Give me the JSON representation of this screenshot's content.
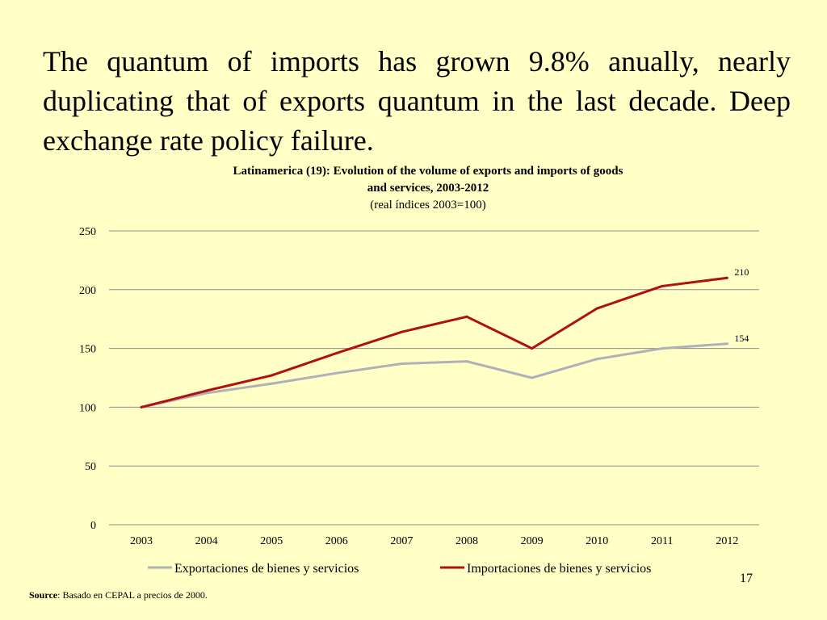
{
  "headline": "The quantum of imports has grown 9.8% anually, nearly duplicating that of exports quantum in the last decade. Deep exchange rate policy failure.",
  "page_number": "17",
  "source": {
    "label": "Source",
    "text": ": Basado en CEPAL a precios de 2000."
  },
  "chart_data": {
    "type": "line",
    "title_line1": "Latinamerica (19):  Evolution of the volume of exports and imports of goods",
    "title_line2": "and services, 2003-2012",
    "subtitle": "(real índices  2003=100)",
    "xlabel": "",
    "ylabel": "",
    "categories": [
      "2003",
      "2004",
      "2005",
      "2006",
      "2007",
      "2008",
      "2009",
      "2010",
      "2011",
      "2012"
    ],
    "ylim": [
      0,
      250
    ],
    "yticks": [
      0,
      50,
      100,
      150,
      200,
      250
    ],
    "grid": true,
    "legend_position": "bottom",
    "series": [
      {
        "name": "Exportaciones de bienes y servicios",
        "color": "#b0b0b8",
        "values": [
          100,
          112,
          120,
          129,
          137,
          139,
          125,
          141,
          150,
          154
        ],
        "end_label": "154"
      },
      {
        "name": "Importaciones de bienes y servicios",
        "color": "#b01010",
        "values": [
          100,
          114,
          127,
          146,
          164,
          177,
          150,
          184,
          203,
          210
        ],
        "end_label": "210"
      }
    ]
  }
}
